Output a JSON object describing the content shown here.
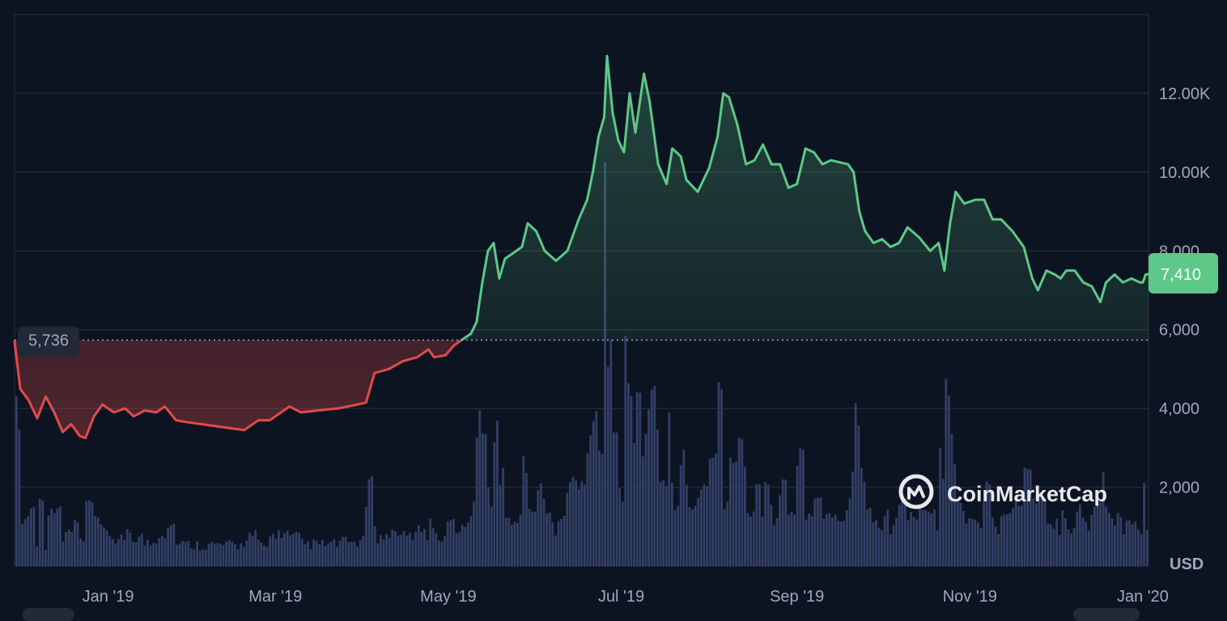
{
  "chart_data": {
    "type": "line",
    "currency": "USD",
    "baseline": {
      "value": 5736,
      "label": "5,736"
    },
    "current": {
      "value": 7410,
      "label": "7,410"
    },
    "y_axis": {
      "range": [
        0,
        14000
      ],
      "ticks": [
        {
          "value": 2000,
          "label": "2,000"
        },
        {
          "value": 4000,
          "label": "4,000"
        },
        {
          "value": 6000,
          "label": "6,000"
        },
        {
          "value": 8000,
          "label": "8,000"
        },
        {
          "value": 10000,
          "label": "10.00K"
        },
        {
          "value": 12000,
          "label": "12.00K"
        }
      ],
      "unit_label": "USD"
    },
    "x_axis": {
      "range": [
        "2018-11-29",
        "2020-01-03"
      ],
      "ticks": [
        {
          "date": "2019-01-01",
          "label": "Jan '19"
        },
        {
          "date": "2019-03-01",
          "label": "Mar '19"
        },
        {
          "date": "2019-05-01",
          "label": "May '19"
        },
        {
          "date": "2019-07-01",
          "label": "Jul '19"
        },
        {
          "date": "2019-09-01",
          "label": "Sep '19"
        },
        {
          "date": "2019-11-01",
          "label": "Nov '19"
        },
        {
          "date": "2020-01-01",
          "label": "Jan '20"
        }
      ]
    },
    "grid": true,
    "colors": {
      "up": "#5dc887",
      "down": "#e04b4b",
      "volume": "#323f66",
      "background": "#0d1421",
      "grid": "#222836",
      "axis_text": "#a1a7bb"
    },
    "series": [
      {
        "points": [
          [
            "2018-11-29",
            5700
          ],
          [
            "2018-12-01",
            4500
          ],
          [
            "2018-12-04",
            4200
          ],
          [
            "2018-12-07",
            3750
          ],
          [
            "2018-12-10",
            4300
          ],
          [
            "2018-12-13",
            3900
          ],
          [
            "2018-12-16",
            3400
          ],
          [
            "2018-12-19",
            3600
          ],
          [
            "2018-12-22",
            3300
          ],
          [
            "2018-12-24",
            3250
          ],
          [
            "2018-12-27",
            3800
          ],
          [
            "2018-12-30",
            4100
          ],
          [
            "2019-01-03",
            3900
          ],
          [
            "2019-01-07",
            4000
          ],
          [
            "2019-01-10",
            3800
          ],
          [
            "2019-01-14",
            3950
          ],
          [
            "2019-01-18",
            3900
          ],
          [
            "2019-01-21",
            4050
          ],
          [
            "2019-01-25",
            3700
          ],
          [
            "2019-01-29",
            3650
          ],
          [
            "2019-02-03",
            3600
          ],
          [
            "2019-02-08",
            3550
          ],
          [
            "2019-02-13",
            3500
          ],
          [
            "2019-02-18",
            3450
          ],
          [
            "2019-02-23",
            3700
          ],
          [
            "2019-02-27",
            3700
          ],
          [
            "2019-03-03",
            3900
          ],
          [
            "2019-03-06",
            4050
          ],
          [
            "2019-03-10",
            3900
          ],
          [
            "2019-03-16",
            3950
          ],
          [
            "2019-03-23",
            4000
          ],
          [
            "2019-03-30",
            4100
          ],
          [
            "2019-04-02",
            4150
          ],
          [
            "2019-04-05",
            4900
          ],
          [
            "2019-04-10",
            5000
          ],
          [
            "2019-04-15",
            5200
          ],
          [
            "2019-04-20",
            5300
          ],
          [
            "2019-04-24",
            5500
          ],
          [
            "2019-04-26",
            5300
          ],
          [
            "2019-04-30",
            5350
          ],
          [
            "2019-05-03",
            5600
          ],
          [
            "2019-05-06",
            5750
          ],
          [
            "2019-05-09",
            5900
          ],
          [
            "2019-05-11",
            6200
          ],
          [
            "2019-05-13",
            7200
          ],
          [
            "2019-05-15",
            8000
          ],
          [
            "2019-05-17",
            8200
          ],
          [
            "2019-05-19",
            7300
          ],
          [
            "2019-05-21",
            7800
          ],
          [
            "2019-05-23",
            7900
          ],
          [
            "2019-05-27",
            8100
          ],
          [
            "2019-05-29",
            8700
          ],
          [
            "2019-06-01",
            8500
          ],
          [
            "2019-06-04",
            8000
          ],
          [
            "2019-06-08",
            7750
          ],
          [
            "2019-06-12",
            8000
          ],
          [
            "2019-06-16",
            8800
          ],
          [
            "2019-06-19",
            9300
          ],
          [
            "2019-06-21",
            10000
          ],
          [
            "2019-06-23",
            10900
          ],
          [
            "2019-06-25",
            11400
          ],
          [
            "2019-06-26",
            12950
          ],
          [
            "2019-06-28",
            11500
          ],
          [
            "2019-06-30",
            10800
          ],
          [
            "2019-07-02",
            10500
          ],
          [
            "2019-07-04",
            12000
          ],
          [
            "2019-07-06",
            11000
          ],
          [
            "2019-07-09",
            12500
          ],
          [
            "2019-07-11",
            11800
          ],
          [
            "2019-07-14",
            10200
          ],
          [
            "2019-07-17",
            9700
          ],
          [
            "2019-07-19",
            10600
          ],
          [
            "2019-07-22",
            10400
          ],
          [
            "2019-07-24",
            9800
          ],
          [
            "2019-07-28",
            9500
          ],
          [
            "2019-08-01",
            10100
          ],
          [
            "2019-08-04",
            10900
          ],
          [
            "2019-08-06",
            12000
          ],
          [
            "2019-08-08",
            11900
          ],
          [
            "2019-08-11",
            11200
          ],
          [
            "2019-08-14",
            10200
          ],
          [
            "2019-08-17",
            10300
          ],
          [
            "2019-08-20",
            10700
          ],
          [
            "2019-08-23",
            10200
          ],
          [
            "2019-08-26",
            10200
          ],
          [
            "2019-08-29",
            9600
          ],
          [
            "2019-09-01",
            9700
          ],
          [
            "2019-09-04",
            10600
          ],
          [
            "2019-09-07",
            10500
          ],
          [
            "2019-09-10",
            10200
          ],
          [
            "2019-09-13",
            10300
          ],
          [
            "2019-09-16",
            10250
          ],
          [
            "2019-09-19",
            10200
          ],
          [
            "2019-09-21",
            10000
          ],
          [
            "2019-09-23",
            9000
          ],
          [
            "2019-09-25",
            8500
          ],
          [
            "2019-09-28",
            8200
          ],
          [
            "2019-10-01",
            8300
          ],
          [
            "2019-10-04",
            8100
          ],
          [
            "2019-10-07",
            8200
          ],
          [
            "2019-10-10",
            8600
          ],
          [
            "2019-10-14",
            8350
          ],
          [
            "2019-10-18",
            8000
          ],
          [
            "2019-10-21",
            8200
          ],
          [
            "2019-10-23",
            7500
          ],
          [
            "2019-10-25",
            8700
          ],
          [
            "2019-10-27",
            9500
          ],
          [
            "2019-10-30",
            9200
          ],
          [
            "2019-11-03",
            9300
          ],
          [
            "2019-11-06",
            9300
          ],
          [
            "2019-11-09",
            8800
          ],
          [
            "2019-11-12",
            8800
          ],
          [
            "2019-11-16",
            8500
          ],
          [
            "2019-11-20",
            8100
          ],
          [
            "2019-11-23",
            7300
          ],
          [
            "2019-11-25",
            7000
          ],
          [
            "2019-11-28",
            7500
          ],
          [
            "2019-12-01",
            7400
          ],
          [
            "2019-12-03",
            7300
          ],
          [
            "2019-12-05",
            7500
          ],
          [
            "2019-12-08",
            7500
          ],
          [
            "2019-12-11",
            7200
          ],
          [
            "2019-12-14",
            7100
          ],
          [
            "2019-12-17",
            6700
          ],
          [
            "2019-12-19",
            7200
          ],
          [
            "2019-12-22",
            7400
          ],
          [
            "2019-12-25",
            7200
          ],
          [
            "2019-12-28",
            7300
          ],
          [
            "2019-12-31",
            7200
          ],
          [
            "2020-01-01",
            7200
          ],
          [
            "2020-01-02",
            7400
          ],
          [
            "2020-01-03",
            7410
          ]
        ]
      }
    ],
    "watermark": "CoinMarketCap"
  }
}
